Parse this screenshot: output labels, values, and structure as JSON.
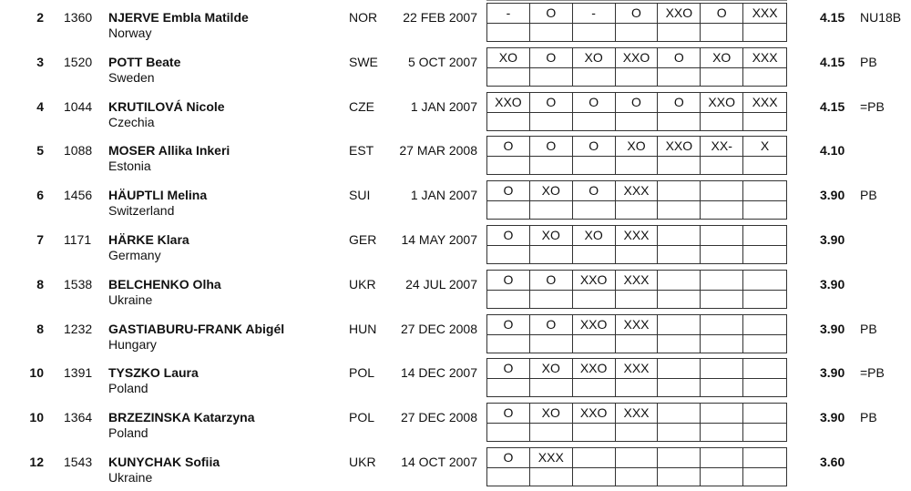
{
  "results": [
    {
      "rank": "2",
      "bib": "1360",
      "name": "NJERVE Embla Matilde",
      "country": "Norway",
      "nat": "NOR",
      "dob": "22 FEB 2007",
      "attempts": [
        "-",
        "O",
        "-",
        "O",
        "XXO",
        "O",
        "XXX"
      ],
      "result": "4.15",
      "remark": "NU18B"
    },
    {
      "rank": "3",
      "bib": "1520",
      "name": "POTT Beate",
      "country": "Sweden",
      "nat": "SWE",
      "dob": "5 OCT 2007",
      "attempts": [
        "XO",
        "O",
        "XO",
        "XXO",
        "O",
        "XO",
        "XXX"
      ],
      "result": "4.15",
      "remark": "PB"
    },
    {
      "rank": "4",
      "bib": "1044",
      "name": "KRUTILOVÁ Nicole",
      "country": "Czechia",
      "nat": "CZE",
      "dob": "1 JAN 2007",
      "attempts": [
        "XXO",
        "O",
        "O",
        "O",
        "O",
        "XXO",
        "XXX"
      ],
      "result": "4.15",
      "remark": "=PB"
    },
    {
      "rank": "5",
      "bib": "1088",
      "name": "MOSER Allika Inkeri",
      "country": "Estonia",
      "nat": "EST",
      "dob": "27 MAR 2008",
      "attempts": [
        "O",
        "O",
        "O",
        "XO",
        "XXO",
        "XX-",
        "X"
      ],
      "result": "4.10",
      "remark": ""
    },
    {
      "rank": "6",
      "bib": "1456",
      "name": "HÄUPTLI Melina",
      "country": "Switzerland",
      "nat": "SUI",
      "dob": "1 JAN 2007",
      "attempts": [
        "O",
        "XO",
        "O",
        "XXX",
        "",
        "",
        ""
      ],
      "result": "3.90",
      "remark": "PB"
    },
    {
      "rank": "7",
      "bib": "1171",
      "name": "HÄRKE Klara",
      "country": "Germany",
      "nat": "GER",
      "dob": "14 MAY 2007",
      "attempts": [
        "O",
        "XO",
        "XO",
        "XXX",
        "",
        "",
        ""
      ],
      "result": "3.90",
      "remark": ""
    },
    {
      "rank": "8",
      "bib": "1538",
      "name": "BELCHENKO Olha",
      "country": "Ukraine",
      "nat": "UKR",
      "dob": "24 JUL 2007",
      "attempts": [
        "O",
        "O",
        "XXO",
        "XXX",
        "",
        "",
        ""
      ],
      "result": "3.90",
      "remark": ""
    },
    {
      "rank": "8",
      "bib": "1232",
      "name": "GASTIABURU-FRANK Abigél",
      "country": "Hungary",
      "nat": "HUN",
      "dob": "27 DEC 2008",
      "attempts": [
        "O",
        "O",
        "XXO",
        "XXX",
        "",
        "",
        ""
      ],
      "result": "3.90",
      "remark": "PB"
    },
    {
      "rank": "10",
      "bib": "1391",
      "name": "TYSZKO Laura",
      "country": "Poland",
      "nat": "POL",
      "dob": "14 DEC 2007",
      "attempts": [
        "O",
        "XO",
        "XXO",
        "XXX",
        "",
        "",
        ""
      ],
      "result": "3.90",
      "remark": "=PB"
    },
    {
      "rank": "10",
      "bib": "1364",
      "name": "BRZEZINSKA Katarzyna",
      "country": "Poland",
      "nat": "POL",
      "dob": "27 DEC 2008",
      "attempts": [
        "O",
        "XO",
        "XXO",
        "XXX",
        "",
        "",
        ""
      ],
      "result": "3.90",
      "remark": "PB"
    },
    {
      "rank": "12",
      "bib": "1543",
      "name": "KUNYCHAK Sofiia",
      "country": "Ukraine",
      "nat": "UKR",
      "dob": "14 OCT 2007",
      "attempts": [
        "O",
        "XXX",
        "",
        "",
        "",
        "",
        ""
      ],
      "result": "3.60",
      "remark": ""
    }
  ]
}
